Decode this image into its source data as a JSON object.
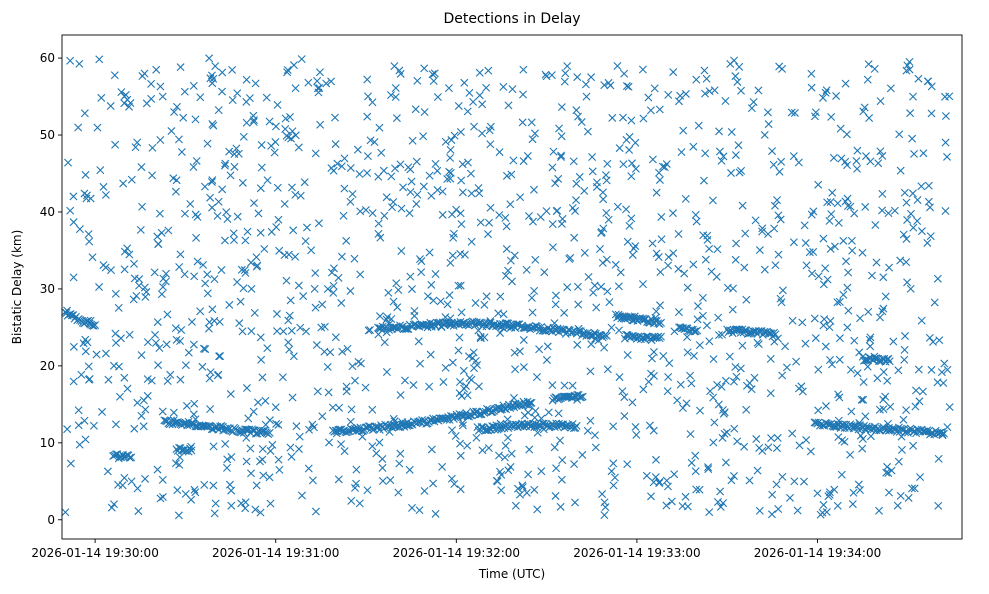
{
  "chart_data": {
    "type": "scatter",
    "title": "Detections in Delay",
    "xlabel": "Time (UTC)",
    "ylabel": "Bistatic Delay (km)",
    "marker": "x",
    "color": "#1f77b4",
    "grid": false,
    "legend": "none",
    "x_axis_type": "time",
    "xlim": [
      "2026-01-14 19:29:49",
      "2026-01-14 19:34:48"
    ],
    "ylim": [
      -2.5,
      63
    ],
    "xticks": [
      "2026-01-14 19:30:00",
      "2026-01-14 19:31:00",
      "2026-01-14 19:32:00",
      "2026-01-14 19:33:00",
      "2026-01-14 19:34:00"
    ],
    "yticks": [
      0,
      10,
      20,
      30,
      40,
      50,
      60
    ],
    "tracks": [
      {
        "points": [
          [
            "2026-01-14 19:30:23",
            12.8
          ],
          [
            "2026-01-14 19:30:36",
            12.2
          ],
          [
            "2026-01-14 19:30:48",
            11.6
          ],
          [
            "2026-01-14 19:30:58",
            11.3
          ]
        ]
      },
      {
        "points": [
          [
            "2026-01-14 19:31:19",
            11.5
          ],
          [
            "2026-01-14 19:31:35",
            12.0
          ],
          [
            "2026-01-14 19:31:55",
            13.0
          ],
          [
            "2026-01-14 19:32:07",
            13.9
          ],
          [
            "2026-01-14 19:32:17",
            14.7
          ],
          [
            "2026-01-14 19:32:25",
            15.2
          ]
        ]
      },
      {
        "points": [
          [
            "2026-01-14 19:32:07",
            11.8
          ],
          [
            "2026-01-14 19:32:20",
            12.2
          ],
          [
            "2026-01-14 19:32:30",
            12.3
          ],
          [
            "2026-01-14 19:32:40",
            12.2
          ]
        ]
      },
      {
        "points": [
          [
            "2026-01-14 19:32:32",
            15.7
          ],
          [
            "2026-01-14 19:32:42",
            16.0
          ]
        ]
      },
      {
        "points": [
          [
            "2026-01-14 19:31:34",
            24.7
          ],
          [
            "2026-01-14 19:31:50",
            25.3
          ],
          [
            "2026-01-14 19:32:05",
            25.5
          ],
          [
            "2026-01-14 19:32:20",
            25.2
          ],
          [
            "2026-01-14 19:32:35",
            24.5
          ],
          [
            "2026-01-14 19:32:50",
            23.9
          ]
        ]
      },
      {
        "points": [
          [
            "2026-01-14 19:32:53",
            26.5
          ],
          [
            "2026-01-14 19:33:02",
            26.0
          ],
          [
            "2026-01-14 19:33:08",
            25.6
          ]
        ]
      },
      {
        "points": [
          [
            "2026-01-14 19:32:56",
            23.8
          ],
          [
            "2026-01-14 19:33:04",
            23.5
          ],
          [
            "2026-01-14 19:33:08",
            23.8
          ]
        ]
      },
      {
        "points": [
          [
            "2026-01-14 19:33:14",
            24.9
          ],
          [
            "2026-01-14 19:33:20",
            24.6
          ]
        ]
      },
      {
        "points": [
          [
            "2026-01-14 19:33:30",
            24.6
          ],
          [
            "2026-01-14 19:33:40",
            24.3
          ],
          [
            "2026-01-14 19:33:46",
            24.1
          ]
        ]
      },
      {
        "points": [
          [
            "2026-01-14 19:33:59",
            12.4
          ],
          [
            "2026-01-14 19:34:15",
            12.0
          ],
          [
            "2026-01-14 19:34:30",
            11.6
          ],
          [
            "2026-01-14 19:34:42",
            11.2
          ]
        ]
      },
      {
        "points": [
          [
            "2026-01-14 19:34:15",
            20.9
          ],
          [
            "2026-01-14 19:34:24",
            20.6
          ]
        ]
      },
      {
        "points": [
          [
            "2026-01-14 19:29:50",
            26.8
          ],
          [
            "2026-01-14 19:29:55",
            26.0
          ],
          [
            "2026-01-14 19:30:00",
            25.3
          ]
        ]
      },
      {
        "points": [
          [
            "2026-01-14 19:30:27",
            9.2
          ],
          [
            "2026-01-14 19:30:32",
            9.0
          ]
        ]
      },
      {
        "points": [
          [
            "2026-01-14 19:30:06",
            8.3
          ],
          [
            "2026-01-14 19:30:12",
            8.1
          ]
        ]
      }
    ],
    "background_detections": {
      "count": 1450,
      "x_range": [
        "2026-01-14 19:29:50",
        "2026-01-14 19:34:44"
      ],
      "y_range": [
        0.5,
        60
      ]
    }
  }
}
